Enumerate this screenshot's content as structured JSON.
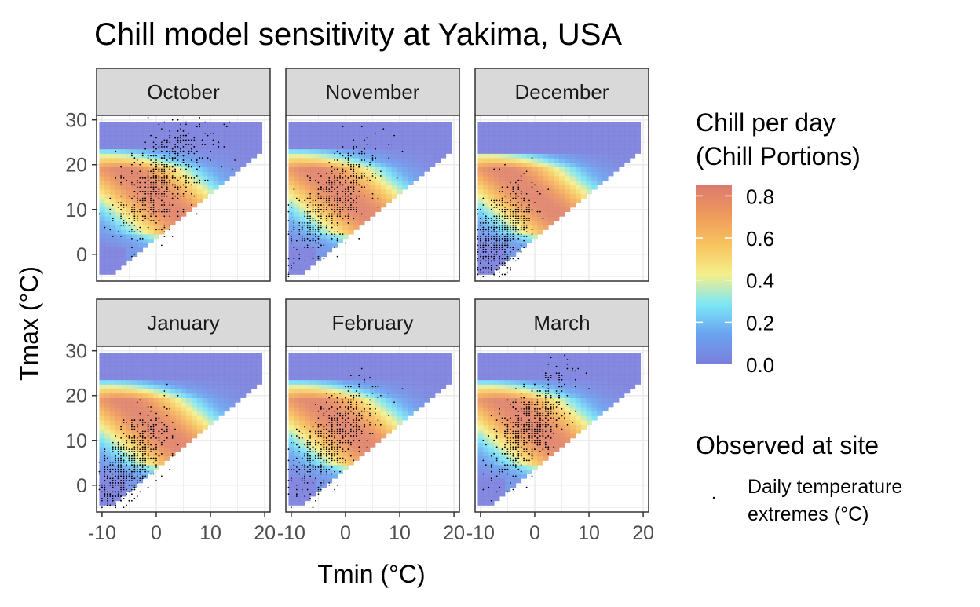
{
  "chart_data": {
    "type": "heatmap",
    "title": "Chill model sensitivity at Yakima, USA",
    "xlabel": "Tmin (°C)",
    "ylabel": "Tmax (°C)",
    "xlim": [
      -11,
      21
    ],
    "ylim": [
      -6,
      31
    ],
    "x_ticks": [
      -10,
      0,
      10,
      20
    ],
    "y_ticks": [
      0,
      10,
      20,
      30
    ],
    "grid": true,
    "facets": [
      "October",
      "November",
      "December",
      "January",
      "February",
      "March"
    ],
    "legend": {
      "fill_title_lines": [
        "Chill per day",
        "(Chill Portions)"
      ],
      "fill_range": [
        0,
        0.85
      ],
      "fill_ticks": [
        "0.0",
        "0.2",
        "0.4",
        "0.6",
        "0.8"
      ],
      "fill_tick_values": [
        0,
        0.2,
        0.4,
        0.6,
        0.8
      ],
      "points_title": "Observed at site",
      "points_label_lines": [
        "Daily temperature",
        "extremes (°C)"
      ],
      "placement": "right"
    },
    "colors": {
      "scale": [
        "#7b7fdc",
        "#6aa2f0",
        "#7ce6f5",
        "#f4ef8c",
        "#f8c45e",
        "#ee9a5c",
        "#db7a6d"
      ],
      "strip_fill": "#d9d9d9",
      "grid": "#ebebeb",
      "panel_border": "#333333"
    },
    "heatmap_grid": {
      "tmin_range": [
        -10,
        19
      ],
      "tmax_range": [
        -4,
        29.5
      ],
      "step": 1,
      "note": "Tmax >= Tmin region; warm-humid band 0-23 Tmax yields highest chill"
    },
    "observed_points": {
      "October": {
        "tmin_center": 1,
        "tmin_sd": 4.5,
        "tmax_center": 17,
        "tmax_sd": 6,
        "n": 600
      },
      "November": {
        "tmin_center": -3,
        "tmin_sd": 4.5,
        "tmax_center": 11,
        "tmax_sd": 5,
        "n": 600
      },
      "December": {
        "tmin_center": -6,
        "tmin_sd": 3,
        "tmax_center": 5,
        "tmax_sd": 5,
        "n": 600
      },
      "January": {
        "tmin_center": -5,
        "tmin_sd": 3.5,
        "tmax_center": 5,
        "tmax_sd": 5,
        "n": 600
      },
      "February": {
        "tmin_center": -3,
        "tmin_sd": 4,
        "tmax_center": 10,
        "tmax_sd": 5,
        "n": 600
      },
      "March": {
        "tmin_center": -1,
        "tmin_sd": 3.5,
        "tmax_center": 13,
        "tmax_sd": 5,
        "n": 600
      }
    }
  }
}
